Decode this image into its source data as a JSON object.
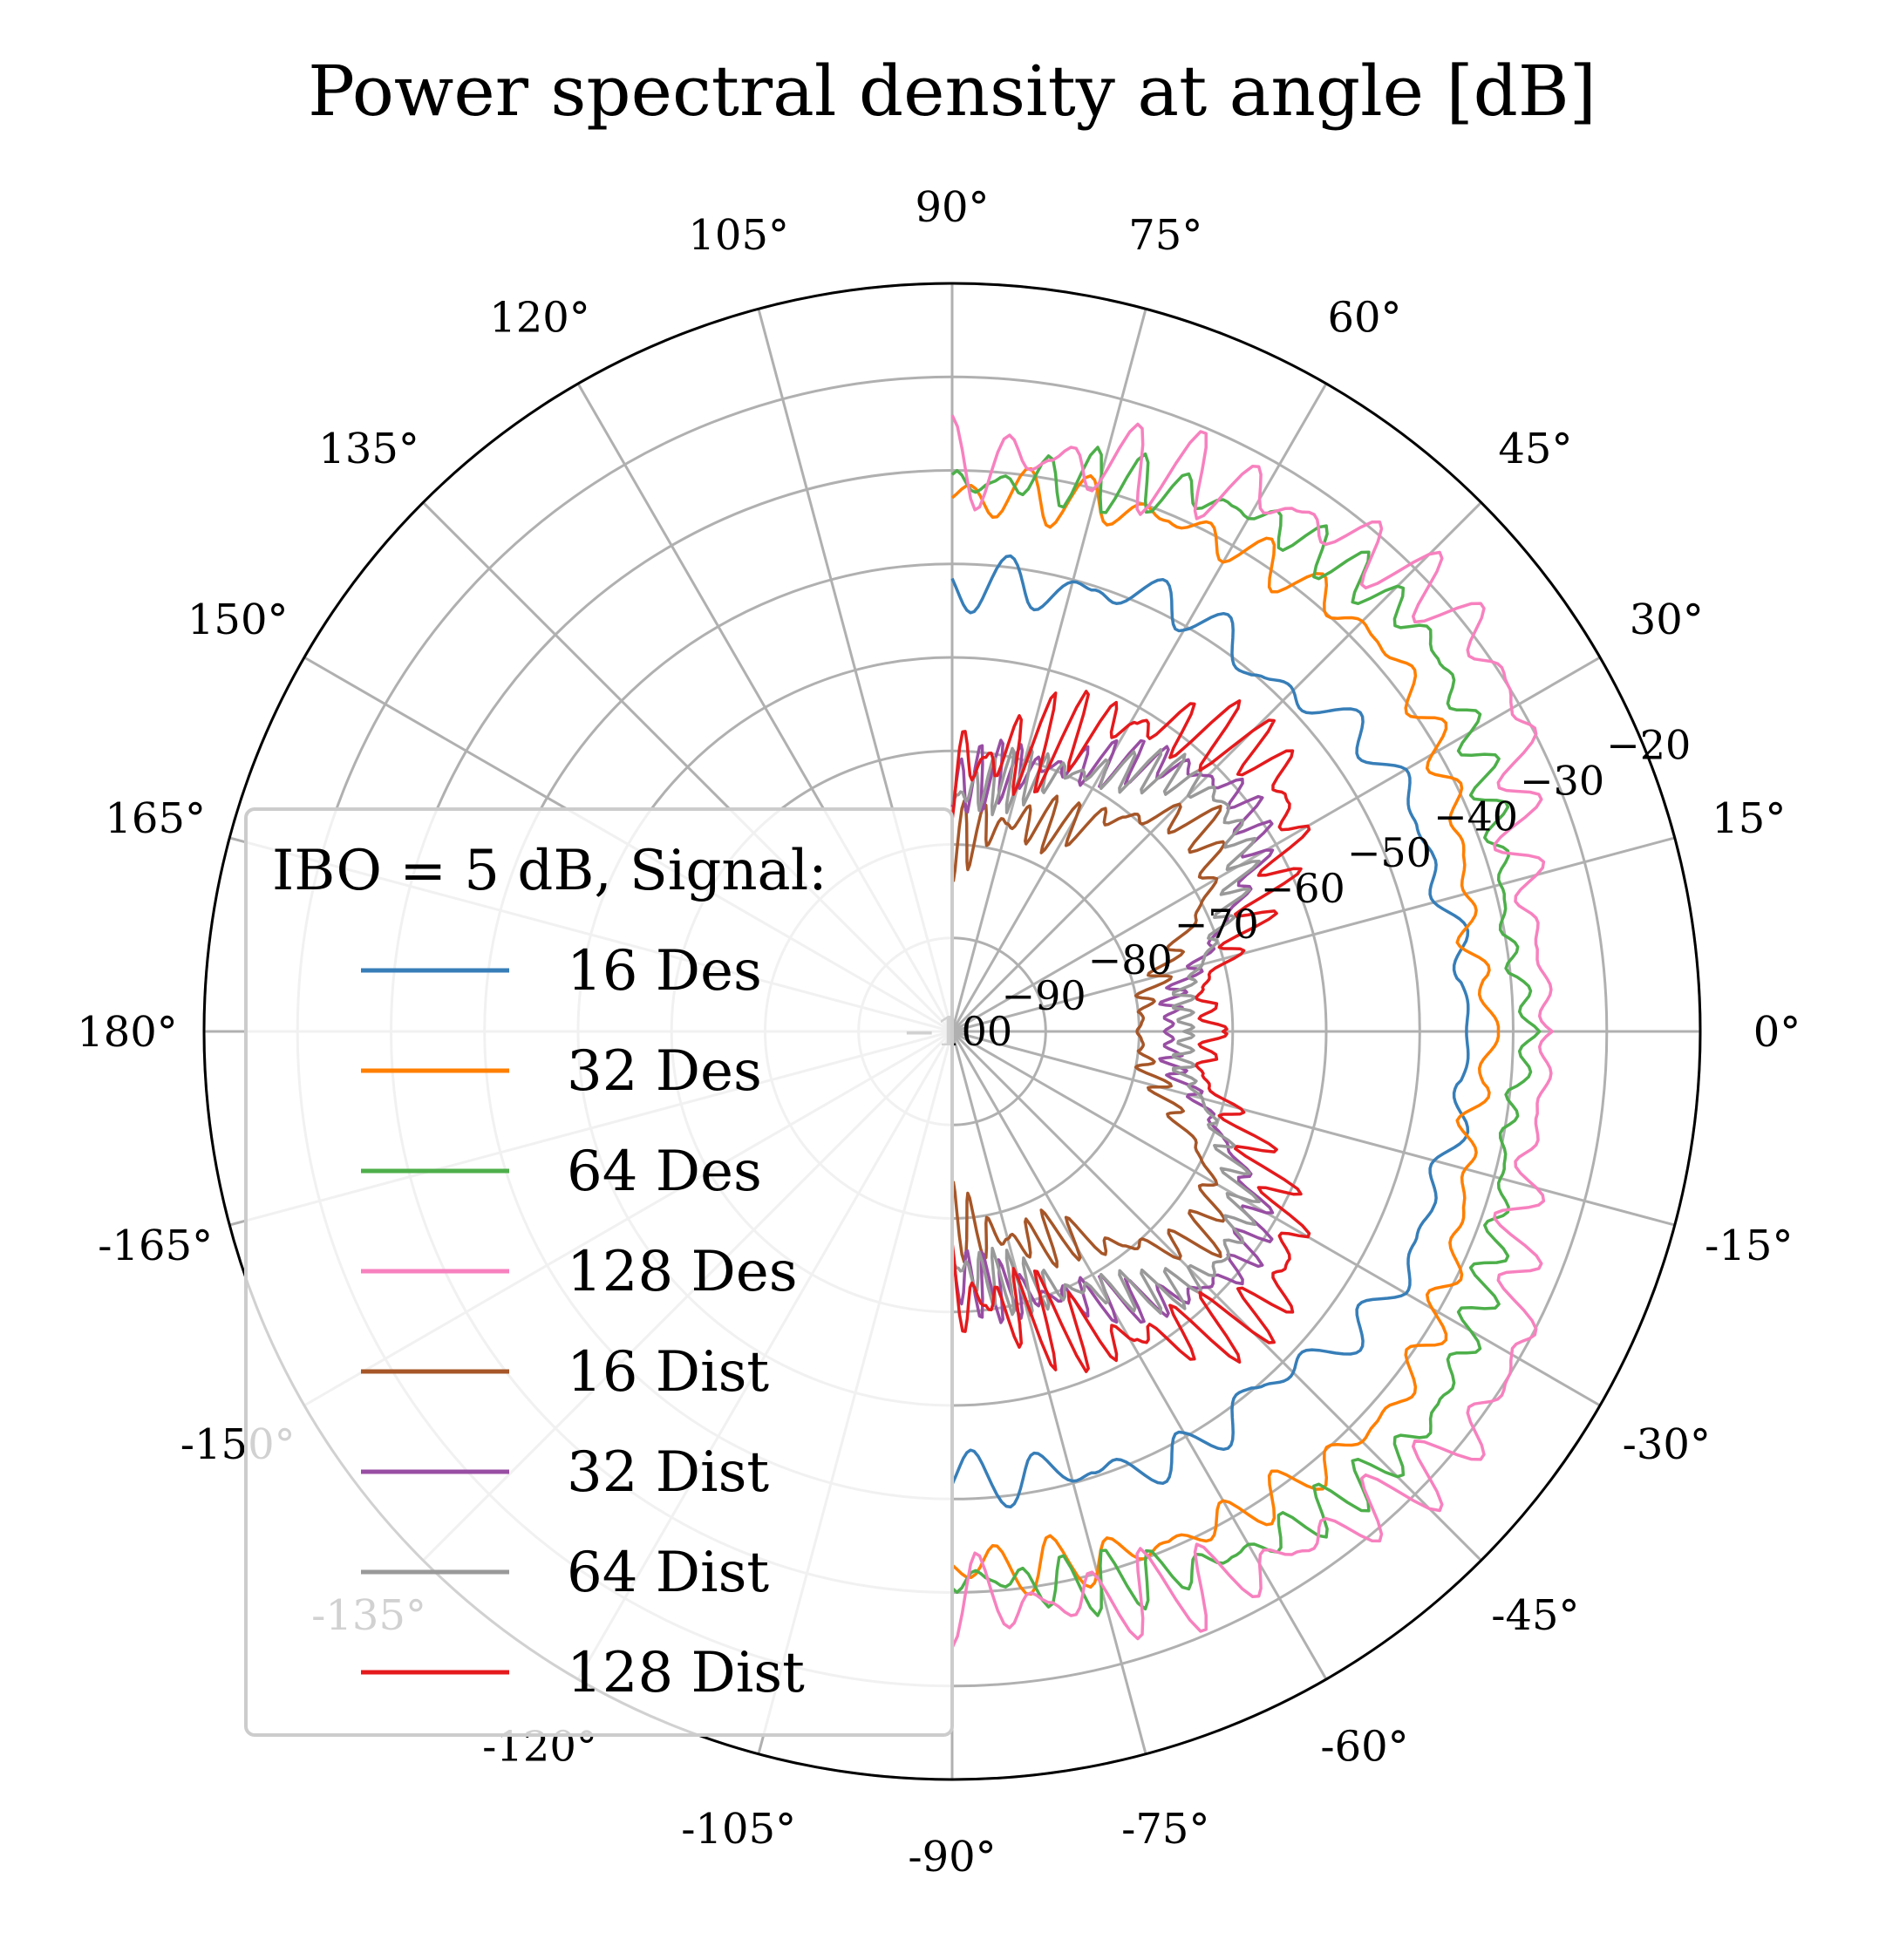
{
  "chart_data": {
    "type": "polar-line",
    "title": "Power spectral density at angle [dB]",
    "theta_range_deg": [
      -90,
      90
    ],
    "r_range_db": [
      -100,
      -20
    ],
    "grid": true,
    "angular_ticks": [
      "0°",
      "15°",
      "30°",
      "45°",
      "60°",
      "75°",
      "90°",
      "105°",
      "120°",
      "135°",
      "150°",
      "165°",
      "180°",
      "-165°",
      "-150°",
      "-135°",
      "-120°",
      "-105°",
      "-90°",
      "-75°",
      "-60°",
      "-45°",
      "-30°",
      "-15°"
    ],
    "radial_ticks": [
      -100,
      -90,
      -80,
      -70,
      -60,
      -50,
      -40,
      -30,
      -20
    ],
    "radial_tick_labels": [
      "−100",
      "−90",
      "−80",
      "−70",
      "−60",
      "−50",
      "−40",
      "−30",
      "−20"
    ],
    "legend": {
      "title": "IBO = 5 dB, Signal:",
      "placement": "center-left"
    },
    "theta_deg": [
      0,
      10,
      20,
      30,
      40,
      50,
      60,
      70,
      80,
      90
    ],
    "series": [
      {
        "name": "16 Des",
        "color": "#377eb8",
        "base_db": [
          -45,
          -45,
          -46,
          -45,
          -47,
          -50,
          -48,
          -50,
          -52,
          -52
        ]
      },
      {
        "name": "32 Des",
        "color": "#ff7f00",
        "base_db": [
          -42,
          -44,
          -42,
          -40,
          -38,
          -39,
          -40,
          -41,
          -42,
          -43
        ]
      },
      {
        "name": "64 Des",
        "color": "#4daf4a",
        "base_db": [
          -38,
          -40,
          -38,
          -36,
          -34,
          -35,
          -36,
          -38,
          -40,
          -42
        ]
      },
      {
        "name": "128 Des",
        "color": "#f781bf",
        "base_db": [
          -36,
          -37,
          -36,
          -30,
          -30,
          -32,
          -34,
          -36,
          -38,
          -40
        ]
      },
      {
        "name": "16 Dist",
        "color": "#a65628",
        "base_db": [
          -80,
          -79,
          -75,
          -68,
          -65,
          -70,
          -75,
          -76,
          -78,
          -80
        ]
      },
      {
        "name": "32 Dist",
        "color": "#984ea3",
        "base_db": [
          -77,
          -76,
          -70,
          -62,
          -60,
          -63,
          -67,
          -70,
          -72,
          -74
        ]
      },
      {
        "name": "64 Dist",
        "color": "#999999",
        "base_db": [
          -75,
          -75,
          -70,
          -64,
          -62,
          -64,
          -68,
          -71,
          -73,
          -75
        ]
      },
      {
        "name": "128 Dist",
        "color": "#e41a1c",
        "base_db": [
          -72,
          -73,
          -66,
          -58,
          -55,
          -58,
          -62,
          -67,
          -70,
          -72
        ]
      }
    ]
  }
}
